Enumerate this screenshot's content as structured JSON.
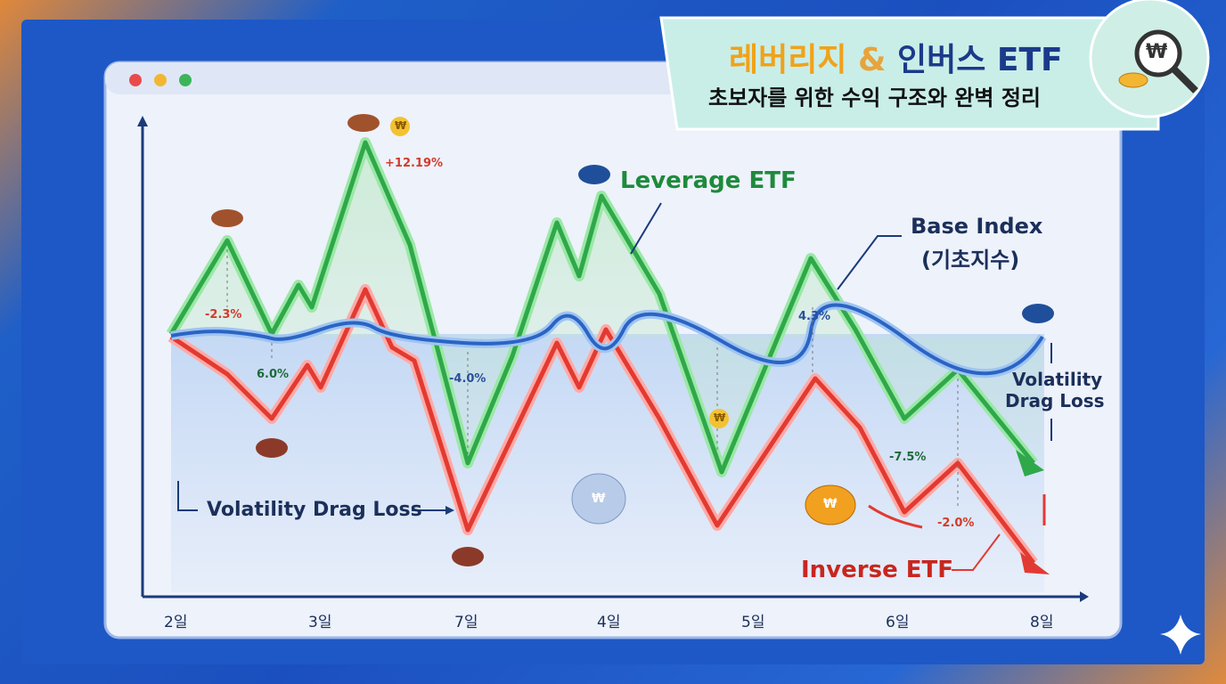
{
  "header": {
    "title_part1": "레버리지",
    "title_amp": "&",
    "title_part2": "인버스 ETF",
    "subtitle": "초보자를 위한 수익 구조와 완벽 정리"
  },
  "coin_symbol": "₩",
  "labels": {
    "leverage": "Leverage ETF",
    "base_index": "Base Index",
    "base_index_kr": "(기초지수)",
    "drag_left": "Volatility Drag Loss",
    "drag_right_1": "Volatility",
    "drag_right_2": "Drag Loss",
    "inverse": "Inverse ETF"
  },
  "annotations": [
    "-2.3%",
    "6.0%",
    "+12.19%",
    "-4.0%",
    "4.3%",
    "-7.5%",
    "-2.0%"
  ],
  "x_labels": [
    "2일",
    "3일",
    "7일",
    "4일",
    "5일",
    "6일",
    "8일"
  ]
}
